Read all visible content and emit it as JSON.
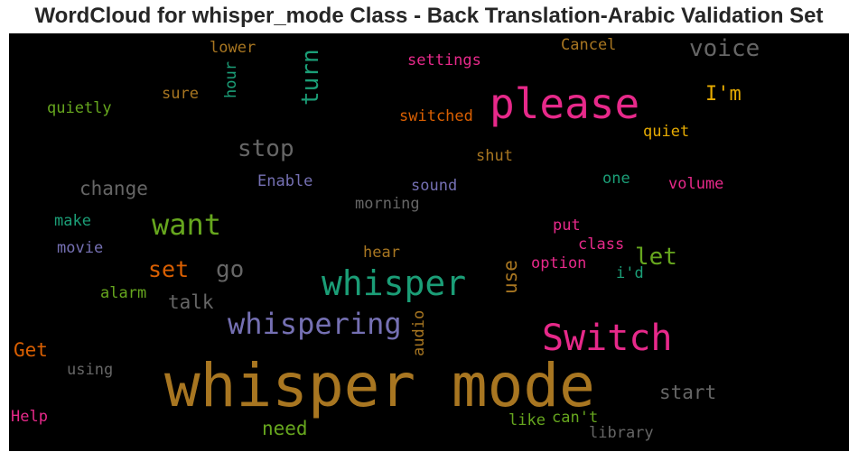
{
  "title": "WordCloud for whisper_mode Class - Back Translation-Arabic Validation Set",
  "words": [
    {
      "text": "whisper mode",
      "color": "#a87621"
    },
    {
      "text": "please",
      "color": "#e7298a"
    },
    {
      "text": "Switch",
      "color": "#e7298a"
    },
    {
      "text": "whisper",
      "color": "#1b9e77"
    },
    {
      "text": "whispering",
      "color": "#7570b3"
    },
    {
      "text": "want",
      "color": "#66a61e"
    },
    {
      "text": "voice",
      "color": "#666666"
    },
    {
      "text": "stop",
      "color": "#666666"
    },
    {
      "text": "turn",
      "color": "#1b9e77"
    },
    {
      "text": "set",
      "color": "#d95f02"
    },
    {
      "text": "go",
      "color": "#666666"
    },
    {
      "text": "let",
      "color": "#66a61e"
    },
    {
      "text": "I'm",
      "color": "#e6ab02"
    },
    {
      "text": "change",
      "color": "#666666"
    },
    {
      "text": "talk",
      "color": "#666666"
    },
    {
      "text": "start",
      "color": "#666666"
    },
    {
      "text": "need",
      "color": "#66a61e"
    },
    {
      "text": "Get",
      "color": "#d95f02"
    },
    {
      "text": "use",
      "color": "#a87621"
    },
    {
      "text": "settings",
      "color": "#e7298a"
    },
    {
      "text": "switched",
      "color": "#d95f02"
    },
    {
      "text": "Cancel",
      "color": "#a87621"
    },
    {
      "text": "lower",
      "color": "#a87621"
    },
    {
      "text": "hour",
      "color": "#1b9e77"
    },
    {
      "text": "sure",
      "color": "#a87621"
    },
    {
      "text": "quietly",
      "color": "#66a61e"
    },
    {
      "text": "quiet",
      "color": "#e6ab02"
    },
    {
      "text": "shut",
      "color": "#a87621"
    },
    {
      "text": "Enable",
      "color": "#7570b3"
    },
    {
      "text": "sound",
      "color": "#7570b3"
    },
    {
      "text": "one",
      "color": "#1b9e77"
    },
    {
      "text": "volume",
      "color": "#e7298a"
    },
    {
      "text": "morning",
      "color": "#666666"
    },
    {
      "text": "make",
      "color": "#1b9e77"
    },
    {
      "text": "movie",
      "color": "#7570b3"
    },
    {
      "text": "put",
      "color": "#e7298a"
    },
    {
      "text": "class",
      "color": "#e7298a"
    },
    {
      "text": "hear",
      "color": "#a87621"
    },
    {
      "text": "option",
      "color": "#e7298a"
    },
    {
      "text": "i'd",
      "color": "#1b9e77"
    },
    {
      "text": "alarm",
      "color": "#66a61e"
    },
    {
      "text": "audio",
      "color": "#a87621"
    },
    {
      "text": "using",
      "color": "#666666"
    },
    {
      "text": "Help",
      "color": "#e7298a"
    },
    {
      "text": "like",
      "color": "#66a61e"
    },
    {
      "text": "can't",
      "color": "#66a61e"
    },
    {
      "text": "library",
      "color": "#666666"
    }
  ]
}
